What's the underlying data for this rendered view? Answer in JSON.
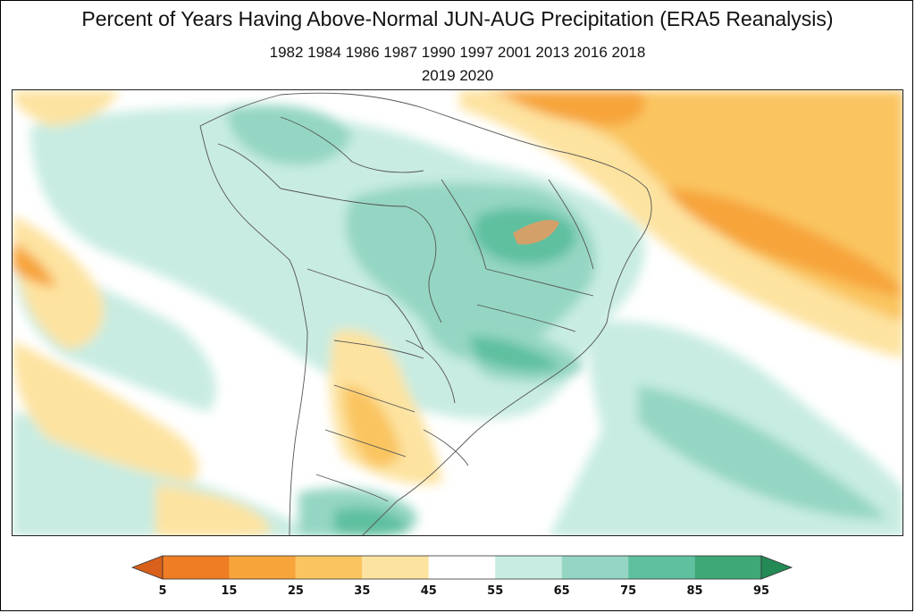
{
  "title": "Percent of Years Having Above-Normal JUN-AUG Precipitation (ERA5 Reanalysis)",
  "years_line1": "1982 1984 1986 1987 1990 1997 2001 2013 2016 2018",
  "years_line2": "2019 2020",
  "colorbar": {
    "ticks": [
      "5",
      "15",
      "25",
      "35",
      "45",
      "55",
      "65",
      "75",
      "85",
      "95"
    ],
    "colors": [
      "#d9601a",
      "#ef7d23",
      "#f7a43b",
      "#fac561",
      "#fde3a0",
      "#ffffff",
      "#c8ece2",
      "#94d6c3",
      "#5fc0a0",
      "#3ea876",
      "#238a55"
    ]
  }
}
